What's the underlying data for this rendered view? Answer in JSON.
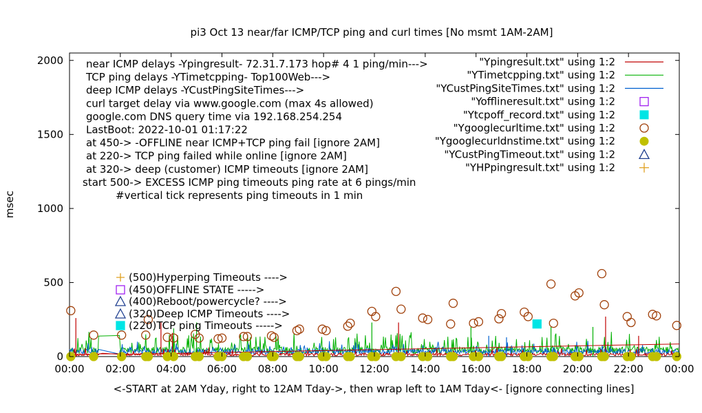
{
  "chart_data": {
    "type": "line",
    "title": "pi3 Oct 13  near/far ICMP/TCP ping and curl times [No msmt 1AM-2AM]",
    "xlabel": "<-START at 2AM Yday, right to 12AM Tday->, then wrap left to 1AM Tday<- [ignore connecting lines]",
    "ylabel": "msec",
    "xlim": [
      0,
      24
    ],
    "ylim": [
      0,
      2050
    ],
    "x_ticks": [
      "00:00",
      "02:00",
      "04:00",
      "06:00",
      "08:00",
      "10:00",
      "12:00",
      "14:00",
      "16:00",
      "18:00",
      "20:00",
      "22:00",
      "00:00"
    ],
    "y_ticks": [
      "0",
      "500",
      "1000",
      "1500",
      "2000"
    ],
    "info_lines": [
      "near ICMP delays -Ypingresult- 72.31.7.173 hop# 4 1 ping/min--->",
      "TCP ping delays -YTimetcpping- Top100Web--->",
      "deep ICMP delays -YCustPingSiteTimes--->",
      "curl target delay via www.google.com (max 4s allowed)",
      "google.com DNS query time via 192.168.254.254",
      "LastBoot: 2022-10-01 01:17:22",
      "at 450-> -OFFLINE near ICMP+TCP ping fail [ignore 2AM]",
      "at 220-> TCP ping failed while online [ignore 2AM]",
      "at 320-> deep (customer) ICMP timeouts [ignore 2AM]",
      "start 500-> EXCESS ICMP ping timeouts ping rate at 6 pings/min",
      "#vertical tick represents ping timeouts in 1 min"
    ],
    "timeout_labels": [
      "(500)Hyperping Timeouts ---->",
      "(450)OFFLINE STATE ----->",
      "(400)Reboot/powercycle? ---->",
      "(320)Deep ICMP Timeouts ---->",
      "(220)TCP ping Timeouts ----->"
    ],
    "legend": [
      {
        "label": "\"Ypingresult.txt\" using 1:2",
        "style": "line",
        "color": "#c00000"
      },
      {
        "label": "\"YTimetcpping.txt\" using 1:2",
        "style": "line",
        "color": "#00b000"
      },
      {
        "label": "\"YCustPingSiteTimes.txt\" using 1:2",
        "style": "line",
        "color": "#0060d0"
      },
      {
        "label": "\"Yofflineresult.txt\" using 1:2",
        "style": "open-square",
        "color": "#a020f0"
      },
      {
        "label": "\"Ytcpoff_record.txt\" using 1:2",
        "style": "filled-square",
        "color": "#00e5e5"
      },
      {
        "label": "\"Ygooglecurltime.txt\" using 1:2",
        "style": "open-circle",
        "color": "#a0400a"
      },
      {
        "label": "\"Ygooglecurldnstime.txt\" using 1:2",
        "style": "filled-circle",
        "color": "#c0c000"
      },
      {
        "label": "\"YCustPingTimeout.txt\" using 1:2",
        "style": "open-triangle",
        "color": "#204090"
      },
      {
        "label": "\"YHPpingresult.txt\" using 1:2",
        "style": "plus",
        "color": "#e0a020"
      }
    ],
    "curl_times": {
      "x": [
        0.05,
        0.95,
        2.05,
        3.0,
        3.1,
        3.85,
        4.1,
        4.95,
        5.1,
        5.85,
        6.0,
        6.85,
        7.0,
        7.95,
        8.05,
        8.95,
        9.05,
        9.95,
        10.1,
        10.95,
        11.05,
        11.9,
        12.05,
        12.85,
        13.05,
        13.9,
        14.1,
        15.0,
        15.1,
        15.9,
        16.1,
        16.9,
        17.0,
        17.9,
        18.05,
        18.95,
        19.05,
        19.9,
        20.05,
        20.95,
        21.05,
        21.95,
        22.1,
        22.95,
        23.1,
        23.9
      ],
      "y": [
        310,
        145,
        145,
        145,
        250,
        130,
        125,
        150,
        125,
        120,
        125,
        135,
        135,
        140,
        130,
        175,
        185,
        185,
        175,
        205,
        225,
        305,
        270,
        440,
        320,
        260,
        250,
        220,
        360,
        225,
        235,
        255,
        290,
        300,
        270,
        490,
        225,
        410,
        430,
        560,
        350,
        270,
        230,
        285,
        275,
        210
      ]
    },
    "dns_times": {
      "x": [
        0.05,
        0.95,
        2.05,
        3.0,
        3.1,
        3.85,
        4.1,
        4.95,
        5.1,
        5.85,
        6.0,
        6.85,
        7.0,
        7.95,
        8.05,
        8.95,
        9.05,
        9.95,
        10.1,
        10.95,
        11.05,
        11.9,
        12.05,
        12.85,
        13.05,
        13.9,
        14.1,
        15.0,
        15.1,
        15.9,
        16.1,
        16.9,
        17.0,
        17.9,
        18.05,
        18.95,
        19.05,
        19.9,
        20.05,
        20.95,
        21.05,
        21.95,
        22.1,
        22.95,
        23.1,
        23.9
      ],
      "y": [
        0,
        0,
        0,
        0,
        0,
        0,
        0,
        0,
        0,
        0,
        0,
        0,
        0,
        0,
        0,
        0,
        0,
        0,
        0,
        0,
        0,
        0,
        0,
        0,
        0,
        0,
        0,
        0,
        0,
        0,
        0,
        0,
        0,
        0,
        0,
        0,
        0,
        0,
        0,
        0,
        0,
        0,
        0,
        0,
        0,
        0
      ]
    },
    "tcp_offline": {
      "x": [
        18.4
      ],
      "y": [
        220
      ]
    },
    "tall_spikes": [
      {
        "series": "near",
        "x": 0.25,
        "y": 260
      },
      {
        "series": "near",
        "x": 3.6,
        "y": 230
      },
      {
        "series": "near",
        "x": 4.05,
        "y": 160
      },
      {
        "series": "near",
        "x": 12.95,
        "y": 230
      },
      {
        "series": "near",
        "x": 21.1,
        "y": 270
      },
      {
        "series": "near",
        "x": 22.4,
        "y": 140
      },
      {
        "series": "tcp",
        "x": 4.1,
        "y": 190
      },
      {
        "series": "tcp",
        "x": 5.0,
        "y": 230
      },
      {
        "series": "tcp",
        "x": 11.9,
        "y": 230
      },
      {
        "series": "tcp",
        "x": 15.8,
        "y": 200
      },
      {
        "series": "tcp",
        "x": 18.95,
        "y": 200
      },
      {
        "series": "tcp",
        "x": 20.6,
        "y": 200
      },
      {
        "series": "deep",
        "x": 16.5,
        "y": 140
      },
      {
        "series": "deep",
        "x": 17.2,
        "y": 130
      }
    ],
    "near_trend": {
      "x": [
        0,
        1.1,
        1.3,
        2.0,
        23.95,
        24.0
      ],
      "y": [
        15,
        15,
        22,
        15,
        85,
        85
      ]
    }
  }
}
